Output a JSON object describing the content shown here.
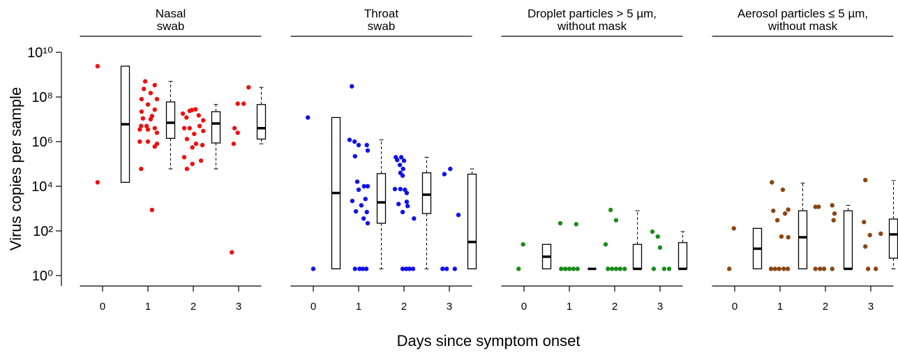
{
  "chart_data": {
    "type": "panels",
    "ylabel": "Virus copies per sample",
    "xlabel": "Days since symptom onset",
    "log_y": true,
    "ylim": [
      0.34,
      10000000000.0
    ],
    "yticks": [
      {
        "value": 1,
        "label": "10⁰"
      },
      {
        "value": 100,
        "label": "10²"
      },
      {
        "value": 10000,
        "label": "10⁴"
      },
      {
        "value": 1000000,
        "label": "10⁶"
      },
      {
        "value": 100000000,
        "label": "10⁸"
      },
      {
        "value": 10000000000,
        "label": "10¹⁰"
      }
    ],
    "panels": [
      {
        "type": "strip-box",
        "title": [
          "Nasal",
          "swab"
        ],
        "color": "#ee1111",
        "xlim": [
          -0.5,
          3.5
        ],
        "xticks": [
          0,
          1,
          2,
          3
        ],
        "x": [
          -0.11,
          -0.11,
          0.94,
          1.15,
          0.91,
          1.06,
          0.86,
          1.2,
          1.0,
          1.15,
          0.86,
          1.09,
          0.89,
          1.06,
          0.85,
          0.97,
          1.15,
          0.82,
          1.0,
          1.2,
          0.82,
          1.0,
          1.2,
          1.15,
          0.85,
          1.09,
          1.77,
          1.92,
          1.97,
          2.05,
          1.85,
          2.12,
          2.22,
          1.8,
          1.92,
          2.14,
          2.02,
          2.22,
          1.86,
          2.06,
          2.2,
          1.98,
          1.8,
          2.17,
          1.86,
          1.98,
          3.22,
          2.98,
          3.11,
          2.91,
          2.98,
          2.89,
          2.85
        ],
        "y": [
          2400000000,
          15000,
          500000000,
          340000000,
          230000000,
          150000000,
          80000000,
          80000000,
          46000000,
          27000000,
          22000000,
          14000000,
          11000000,
          10000000,
          5000000,
          5000000,
          4000000,
          3500000,
          3500000,
          2500000,
          1000000,
          1000000,
          800000,
          600000,
          60000,
          870,
          18000000,
          24000000,
          26000000,
          28000000,
          12000000,
          15000000,
          9000000,
          4000000,
          4000000,
          5000000,
          2200000,
          3000000,
          1300000,
          800000,
          700000,
          550000,
          200000,
          140000,
          60000,
          100000,
          270000000,
          50000000,
          50000000,
          4000000,
          2500000,
          800000,
          11
        ],
        "boxes": [
          {
            "x": 0.5,
            "whislo": 15000,
            "q1": 15000,
            "med": 6000000,
            "q3": 2400000000,
            "whishi": 2400000000
          },
          {
            "x": 1.5,
            "whislo": 60000,
            "q1": 1400000,
            "med": 7000000,
            "q3": 60000000,
            "whishi": 500000000
          },
          {
            "x": 2.5,
            "whislo": 60000,
            "q1": 870000,
            "med": 6500000,
            "q3": 22000000,
            "whishi": 46000000
          },
          {
            "x": 3.5,
            "whislo": 800000,
            "q1": 1300000,
            "med": 4000000,
            "q3": 46000000,
            "whishi": 270000000
          }
        ]
      },
      {
        "type": "strip-box",
        "title": [
          "Throat",
          "swab"
        ],
        "color": "#1010ee",
        "xlim": [
          -0.5,
          3.5
        ],
        "xticks": [
          0,
          1,
          2,
          3
        ],
        "x": [
          -0.12,
          0,
          0.85,
          0.8,
          0.91,
          1.0,
          1.18,
          1.2,
          0.92,
          0.97,
          1.12,
          1.0,
          1.2,
          0.86,
          1.15,
          1.06,
          0.94,
          1.18,
          1.11,
          1.2,
          0.92,
          1.02,
          1.09,
          1.17,
          1.82,
          1.94,
          1.85,
          2.0,
          1.91,
          1.98,
          1.92,
          1.97,
          1.8,
          2.02,
          1.92,
          2.06,
          1.88,
          2.06,
          1.97,
          2.08,
          2.22,
          1.97,
          2.05,
          2.12,
          2.2,
          3.02,
          2.89,
          3.2,
          2.85,
          2.94,
          3.12
        ],
        "y": [
          12000000,
          2,
          300000000,
          1200000,
          1000000,
          700000,
          700000,
          400000,
          220000,
          16000,
          10000,
          7000,
          10000,
          2200,
          2700,
          1400,
          750,
          700,
          360,
          220,
          2,
          2,
          2,
          2,
          200000,
          200000,
          150000,
          140000,
          90000,
          60000,
          40000,
          30000,
          7500,
          7000,
          7500,
          5000,
          1600,
          2000,
          700,
          1300,
          360,
          2,
          2,
          2,
          2,
          60000,
          35000,
          520,
          2,
          2,
          2
        ],
        "boxes": [
          {
            "x": 0.5,
            "whislo": 2,
            "q1": 2,
            "med": 5000,
            "q3": 12000000,
            "whishi": 12000000
          },
          {
            "x": 1.5,
            "whislo": 2,
            "q1": 220,
            "med": 1900,
            "q3": 37000,
            "whishi": 1200000
          },
          {
            "x": 2.5,
            "whislo": 2,
            "q1": 600,
            "med": 4200,
            "q3": 40000,
            "whishi": 200000
          },
          {
            "x": 3.5,
            "whislo": 2,
            "q1": 2,
            "med": 32,
            "q3": 35000,
            "whishi": 60000
          }
        ]
      },
      {
        "type": "strip-box",
        "title": [
          "Droplet particles > 5 µm,",
          "without mask"
        ],
        "color": "#1a8c1a",
        "xlim": [
          -0.5,
          3.5
        ],
        "xticks": [
          0,
          1,
          2,
          3
        ],
        "x": [
          -0.12,
          -0.02,
          0.8,
          1.15,
          0.82,
          0.91,
          1.0,
          1.09,
          1.18,
          1.91,
          2.03,
          1.8,
          1.85,
          1.94,
          2.03,
          2.12,
          2.22,
          2.83,
          2.95,
          3.0,
          2.86,
          3.09,
          3.2
        ],
        "y": [
          2,
          25,
          220,
          200,
          2,
          2,
          2,
          2,
          2,
          870,
          300,
          25,
          2,
          2,
          2,
          2,
          2,
          93,
          56,
          18,
          2,
          2,
          2
        ],
        "boxes": [
          {
            "x": 0.5,
            "whislo": 2,
            "q1": 2,
            "med": 7,
            "q3": 25,
            "whishi": 25
          },
          {
            "x": 1.5,
            "whislo": 2,
            "q1": 2,
            "med": 2,
            "q3": 2,
            "whishi": 2
          },
          {
            "x": 2.5,
            "whislo": 2,
            "q1": 2,
            "med": 2,
            "q3": 25,
            "whishi": 800
          },
          {
            "x": 3.5,
            "whislo": 2,
            "q1": 2,
            "med": 2,
            "q3": 30,
            "whishi": 93
          }
        ]
      },
      {
        "type": "strip-box",
        "title": [
          "Aerosol particles ≤ 5 µm,",
          "without mask"
        ],
        "color": "#8b4513",
        "xlim": [
          -0.5,
          3.5
        ],
        "xticks": [
          0,
          1,
          2,
          3
        ],
        "x": [
          -0.12,
          -0.02,
          0.82,
          1.06,
          0.85,
          1.11,
          1.18,
          0.94,
          1.03,
          1.18,
          0.8,
          0.89,
          0.98,
          1.08,
          1.17,
          1.78,
          1.85,
          2.15,
          2.2,
          2.18,
          1.78,
          1.88,
          1.97,
          2.15,
          2.88,
          2.85,
          2.98,
          2.88,
          3.22,
          2.94,
          3.11
        ],
        "y": [
          2,
          130,
          15000,
          7000,
          800,
          600,
          900,
          300,
          56,
          52,
          2,
          2,
          2,
          2,
          2,
          1200,
          1200,
          1400,
          600,
          300,
          2,
          2,
          2,
          2,
          19000,
          250,
          65,
          20,
          75,
          2,
          2
        ],
        "boxes": [
          {
            "x": 0.5,
            "whislo": 2,
            "q1": 2,
            "med": 16,
            "q3": 130,
            "whishi": 130
          },
          {
            "x": 1.5,
            "whislo": 2,
            "q1": 2,
            "med": 52,
            "q3": 800,
            "whishi": 14000
          },
          {
            "x": 2.5,
            "whislo": 2,
            "q1": 2,
            "med": 2,
            "q3": 800,
            "whishi": 1400
          },
          {
            "x": 3.5,
            "whislo": 2,
            "q1": 6,
            "med": 70,
            "q3": 340,
            "whishi": 18000
          }
        ]
      }
    ]
  }
}
